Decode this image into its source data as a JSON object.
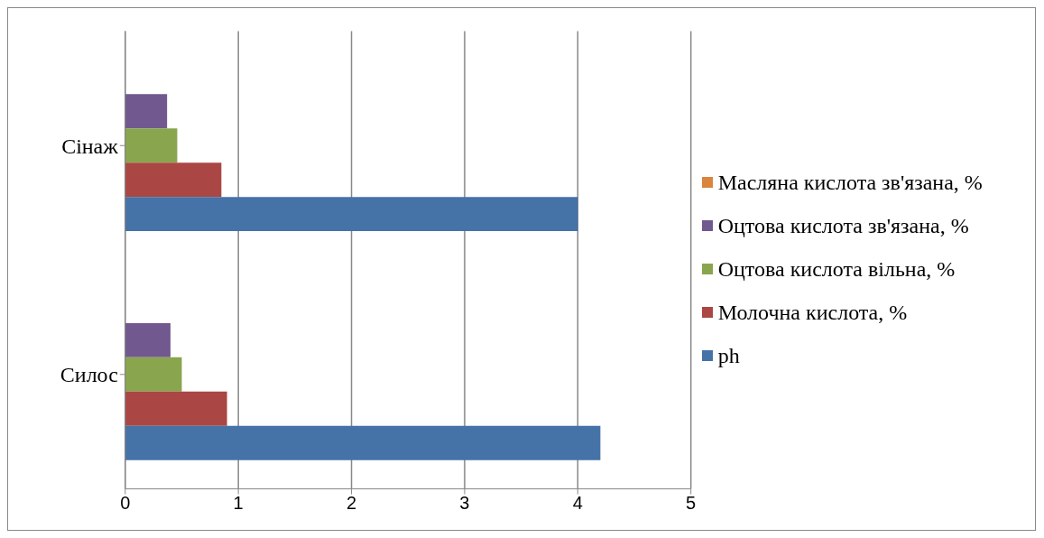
{
  "chart_data": {
    "type": "bar",
    "orientation": "horizontal",
    "categories": [
      "Сінаж",
      "Силос"
    ],
    "series": [
      {
        "name": "Масляна кислота зв'язана, %",
        "color": "#db843d",
        "values": [
          0,
          0
        ]
      },
      {
        "name": "Оцтова кислота зв'язана, %",
        "color": "#71588f",
        "values": [
          0.37,
          0.4
        ]
      },
      {
        "name": "Оцтова кислота вільна, %",
        "color": "#89a54e",
        "values": [
          0.46,
          0.5
        ]
      },
      {
        "name": "Молочна кислота, %",
        "color": "#aa4643",
        "values": [
          0.85,
          0.9
        ]
      },
      {
        "name": "ph",
        "color": "#4572a7",
        "values": [
          4.0,
          4.2
        ]
      }
    ],
    "xlim": [
      0,
      5
    ],
    "xticks": [
      0,
      1,
      2,
      3,
      4,
      5
    ],
    "grid": "x",
    "legend": "right"
  }
}
